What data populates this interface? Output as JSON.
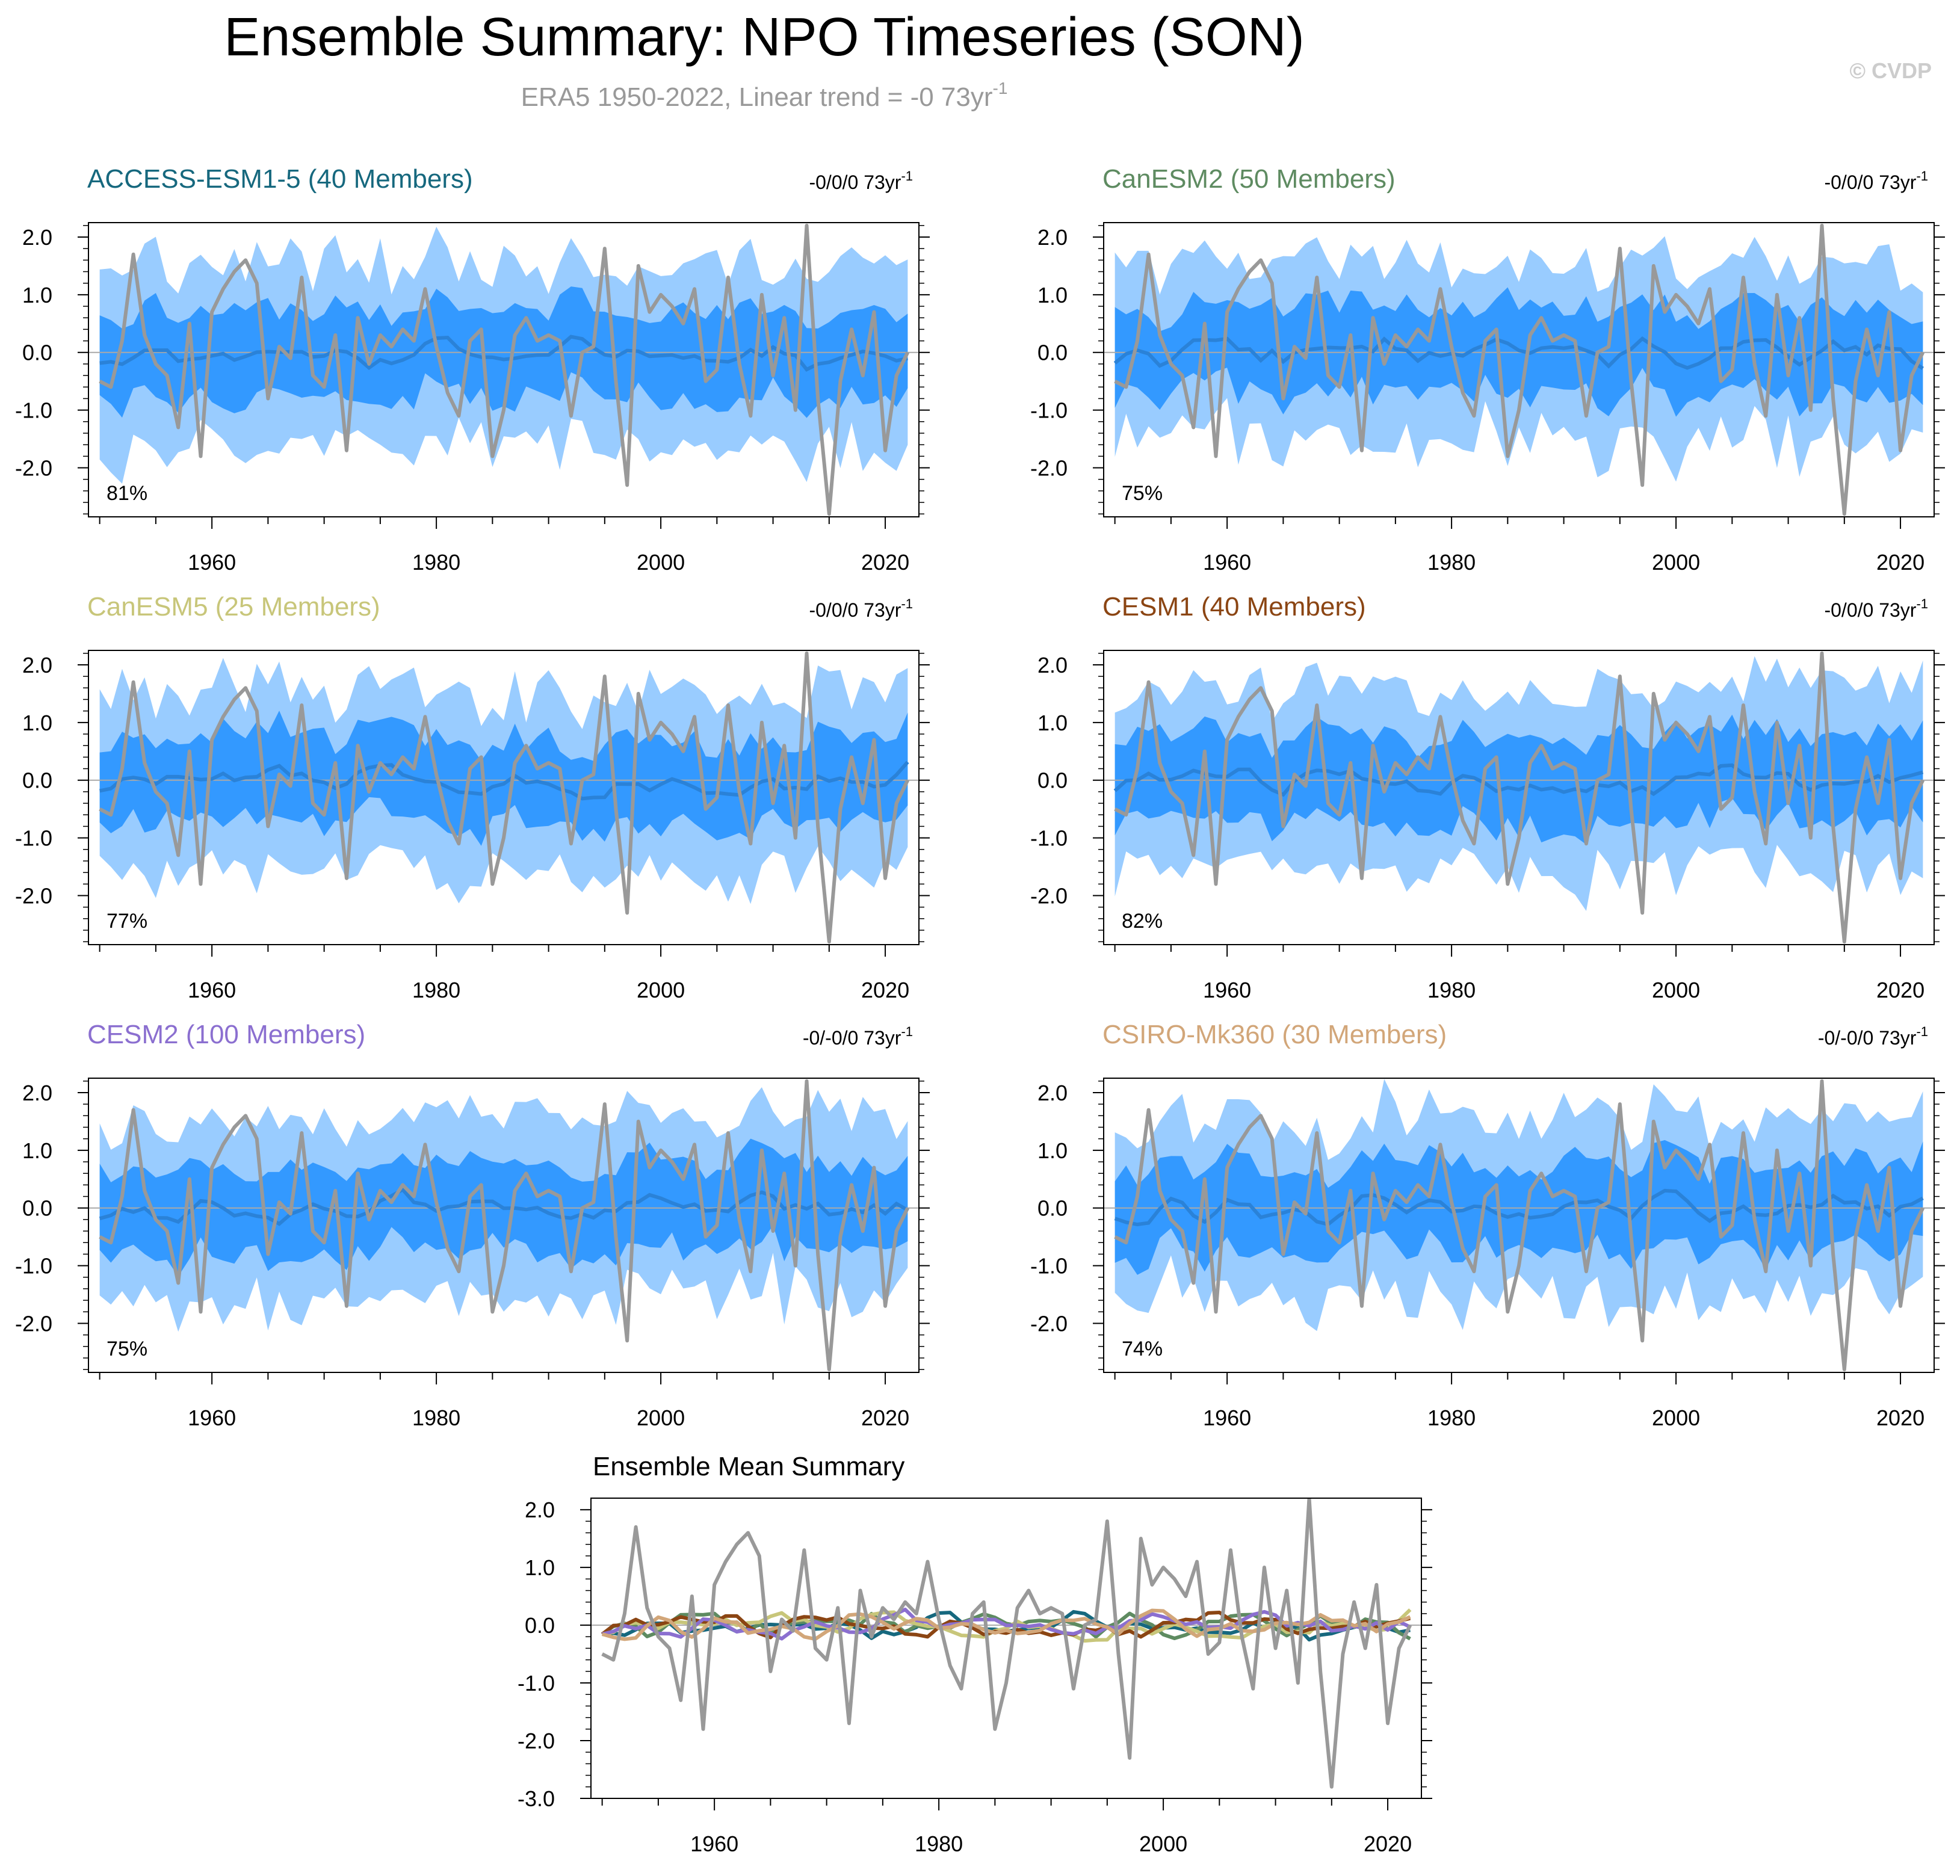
{
  "page": {
    "title": "Ensemble Summary: NPO Timeseries (SON)",
    "subtitle_main": "ERA5 1950-2022, Linear trend = -0 73yr",
    "subtitle_sup": "-1",
    "watermark": "© CVDP"
  },
  "colors": {
    "obs": "#999999",
    "band_outer": "#99ccff",
    "band_inner": "#3399ff",
    "ens_mean": "#2a82d8",
    "zero": "#a9a9a9",
    "subtitle": "#999999",
    "watermark": "#cccccc"
  },
  "chart_data": [
    {
      "type": "line",
      "title": "ACCESS-ESM1-5 (40 Members)",
      "title_color": "#16687e",
      "trend_text": "-0/0/0 73yr",
      "trend_sup": "-1",
      "percent": "81%",
      "seed": 11,
      "yticks": [
        "2.0",
        "1.0",
        "0.0",
        "-1.0",
        "-2.0"
      ],
      "xticks": [
        "1960",
        "1980",
        "2000",
        "2020"
      ],
      "xlim": [
        1949,
        2023
      ],
      "ylim": [
        -2.85,
        2.25
      ]
    },
    {
      "type": "line",
      "title": "CanESM2 (50 Members)",
      "title_color": "#5e8b61",
      "trend_text": "-0/0/0 73yr",
      "trend_sup": "-1",
      "percent": "75%",
      "seed": 22,
      "yticks": [
        "2.0",
        "1.0",
        "0.0",
        "-1.0",
        "-2.0"
      ],
      "xticks": [
        "1960",
        "1980",
        "2000",
        "2020"
      ],
      "xlim": [
        1949,
        2023
      ],
      "ylim": [
        -2.85,
        2.25
      ]
    },
    {
      "type": "line",
      "title": "CanESM5 (25 Members)",
      "title_color": "#c8c67a",
      "trend_text": "-0/0/0 73yr",
      "trend_sup": "-1",
      "percent": "77%",
      "seed": 33,
      "yticks": [
        "2.0",
        "1.0",
        "0.0",
        "-1.0",
        "-2.0"
      ],
      "xticks": [
        "1960",
        "1980",
        "2000",
        "2020"
      ],
      "xlim": [
        1949,
        2023
      ],
      "ylim": [
        -2.85,
        2.25
      ]
    },
    {
      "type": "line",
      "title": "CESM1 (40 Members)",
      "title_color": "#8b4513",
      "trend_text": "-0/0/0 73yr",
      "trend_sup": "-1",
      "percent": "82%",
      "seed": 44,
      "yticks": [
        "2.0",
        "1.0",
        "0.0",
        "-1.0",
        "-2.0"
      ],
      "xticks": [
        "1960",
        "1980",
        "2000",
        "2020"
      ],
      "xlim": [
        1949,
        2023
      ],
      "ylim": [
        -2.85,
        2.25
      ]
    },
    {
      "type": "line",
      "title": "CESM2 (100 Members)",
      "title_color": "#8b6fd0",
      "trend_text": "-0/-0/0 73yr",
      "trend_sup": "-1",
      "percent": "75%",
      "seed": 55,
      "yticks": [
        "2.0",
        "1.0",
        "0.0",
        "-1.0",
        "-2.0"
      ],
      "xticks": [
        "1960",
        "1980",
        "2000",
        "2020"
      ],
      "xlim": [
        1949,
        2023
      ],
      "ylim": [
        -2.85,
        2.25
      ]
    },
    {
      "type": "line",
      "title": "CSIRO-Mk360 (30 Members)",
      "title_color": "#d2a679",
      "trend_text": "-0/-0/0 73yr",
      "trend_sup": "-1",
      "percent": "74%",
      "seed": 66,
      "yticks": [
        "2.0",
        "1.0",
        "0.0",
        "-1.0",
        "-2.0"
      ],
      "xticks": [
        "1960",
        "1980",
        "2000",
        "2020"
      ],
      "xlim": [
        1949,
        2023
      ],
      "ylim": [
        -2.85,
        2.25
      ]
    },
    {
      "type": "line",
      "title": "Ensemble Mean Summary",
      "title_color": "#000000",
      "yticks": [
        "2.0",
        "1.0",
        "0.0",
        "-1.0",
        "-2.0",
        "-3.0"
      ],
      "xticks": [
        "1960",
        "1980",
        "2000",
        "2020"
      ],
      "xlim": [
        1949,
        2023
      ],
      "ylim": [
        -3.0,
        2.2
      ],
      "series_colors": [
        "#16687e",
        "#5e8b61",
        "#c8c67a",
        "#8b4513",
        "#8b6fd0",
        "#d2a679"
      ]
    }
  ],
  "obs_series": {
    "name": "ERA5 NPO (SON)",
    "years_start": 1950,
    "values": [
      -0.5,
      -0.6,
      0.2,
      1.7,
      0.3,
      -0.2,
      -0.4,
      -1.3,
      0.5,
      -1.8,
      0.7,
      1.1,
      1.4,
      1.6,
      1.2,
      -0.8,
      0.1,
      -0.1,
      1.3,
      -0.4,
      -0.6,
      0.3,
      -1.7,
      0.6,
      -0.2,
      0.3,
      0.1,
      0.4,
      0.2,
      1.1,
      0.1,
      -0.7,
      -1.1,
      0.2,
      0.4,
      -1.8,
      -1.0,
      0.3,
      0.6,
      0.2,
      0.3,
      0.2,
      -1.1,
      0.0,
      0.1,
      1.8,
      -0.5,
      -2.3,
      1.5,
      0.7,
      1.0,
      0.8,
      0.5,
      1.1,
      -0.5,
      -0.3,
      1.3,
      -0.2,
      -1.1,
      1.0,
      -0.4,
      0.6,
      -1.0,
      2.2,
      -0.8,
      -2.8,
      -0.5,
      0.4,
      -0.4,
      0.7,
      -1.7,
      -0.4,
      0.0
    ]
  }
}
